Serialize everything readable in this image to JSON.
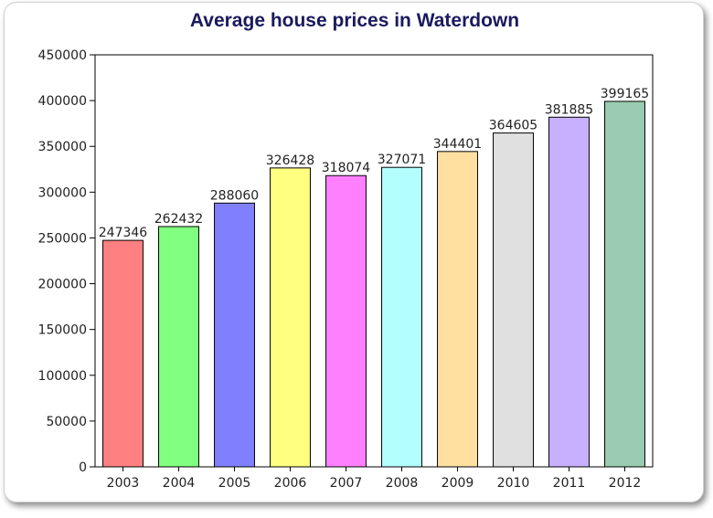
{
  "chart_data": {
    "type": "bar",
    "title": "Average house prices in Waterdown",
    "xlabel": "",
    "ylabel": "",
    "categories": [
      "2003",
      "2004",
      "2005",
      "2006",
      "2007",
      "2008",
      "2009",
      "2010",
      "2011",
      "2012"
    ],
    "values": [
      247346,
      262432,
      288060,
      326428,
      318074,
      327071,
      344401,
      364605,
      381885,
      399165
    ],
    "data_labels": [
      "247346",
      "262432",
      "288060",
      "326428",
      "318074",
      "327071",
      "344401",
      "364605",
      "381885",
      "399165"
    ],
    "colors": [
      "#ff8080",
      "#80ff80",
      "#8080ff",
      "#ffff80",
      "#ff80ff",
      "#b3ffff",
      "#ffe0a0",
      "#e0e0e0",
      "#c8b0ff",
      "#99ccb0"
    ],
    "ylim": [
      0,
      450000
    ],
    "yticks": [
      0,
      50000,
      100000,
      150000,
      200000,
      250000,
      300000,
      350000,
      400000,
      450000
    ],
    "ytick_labels": [
      "0",
      "50000",
      "100000",
      "150000",
      "200000",
      "250000",
      "300000",
      "350000",
      "400000",
      "450000"
    ],
    "grid": false,
    "legend": "none"
  }
}
